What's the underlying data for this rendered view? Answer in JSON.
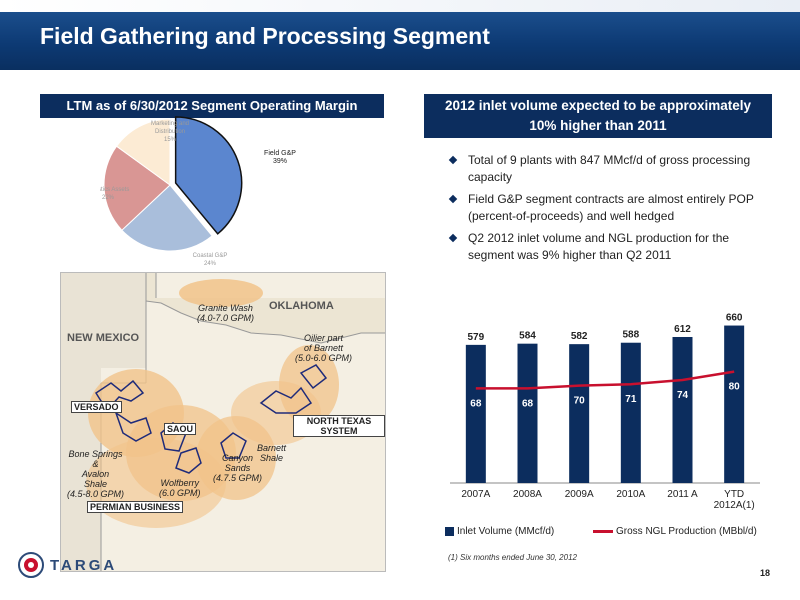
{
  "header": {
    "title": "Field Gathering and Processing Segment"
  },
  "left_box": {
    "title": "LTM as of 6/30/2012 Segment Operating Margin"
  },
  "right_box": {
    "title_line1": "2012 inlet volume expected to be approximately",
    "title_line2": "10% higher than 2011"
  },
  "pie": {
    "slices": [
      {
        "label": "Field G&P",
        "pct": "39%",
        "value": 39,
        "color": "#5b86cf"
      },
      {
        "label": "Coastal G&P",
        "pct": "24%",
        "value": 24,
        "color": "#a9bedb"
      },
      {
        "label": "Logistics Assets",
        "pct": "22%",
        "value": 22,
        "color": "#d99694"
      },
      {
        "label": "Marketing and Distribution",
        "pct": "15%",
        "value": 15,
        "color": "#fcebd4"
      }
    ]
  },
  "bullets": [
    "Total of 9 plants with 847 MMcf/d of gross processing capacity",
    "Field G&P segment contracts are almost entirely POP (percent-of-proceeds) and well hedged",
    "Q2 2012 inlet volume and NGL production for the segment was 9% higher than Q2 2011"
  ],
  "map": {
    "states": {
      "oklahoma": "OKLAHOMA",
      "new_mexico": "NEW MEXICO"
    },
    "granite_wash": {
      "name": "Granite Wash",
      "gpm": "(4.0-7.0 GPM)"
    },
    "oilier_barnett": {
      "name_line1": "Oilier part",
      "name_line2": "of Barnett",
      "gpm": "(5.0-6.0 GPM)"
    },
    "versado": "VERSADO",
    "saou": "SAOU",
    "north_texas": "NORTH TEXAS SYSTEM",
    "barnett_shale": {
      "line1": "Barnett",
      "line2": "Shale"
    },
    "canyon_sands": {
      "line1": "Canyon",
      "line2": "Sands",
      "gpm": "(4.7.5 GPM)"
    },
    "bone_springs": {
      "line1": "Bone Springs",
      "line2": "&",
      "line3": "Avalon",
      "line4": "Shale",
      "gpm": "(4.5-8.0 GPM)"
    },
    "wolfberry": {
      "name": "Wolfberry",
      "gpm": "(6.0 GPM)"
    },
    "permian": "PERMIAN BUSINESS"
  },
  "chart_data": {
    "type": "bar",
    "categories": [
      "2007A",
      "2008A",
      "2009A",
      "2010A",
      "2011 A",
      "YTD 2012A(1)"
    ],
    "category_lines": [
      [
        "2007A"
      ],
      [
        "2008A"
      ],
      [
        "2009A"
      ],
      [
        "2010A"
      ],
      [
        "2011 A"
      ],
      [
        "YTD",
        "2012A(1)"
      ]
    ],
    "series": [
      {
        "name": "Inlet Volume (MMcf/d)",
        "type": "bar",
        "values": [
          579,
          584,
          582,
          588,
          612,
          660
        ],
        "color": "#0c2d5e"
      },
      {
        "name": "Gross NGL Production (MBbl/d)",
        "type": "line",
        "values": [
          68,
          68,
          70,
          71,
          74,
          80
        ],
        "color": "#c8102e"
      }
    ],
    "ylim_bars": [
      0,
      700
    ],
    "ylim_line": [
      0,
      120
    ]
  },
  "footnote": "(1) Six months ended June 30, 2012",
  "page_number": "18",
  "logo": {
    "text": "TARGA"
  }
}
